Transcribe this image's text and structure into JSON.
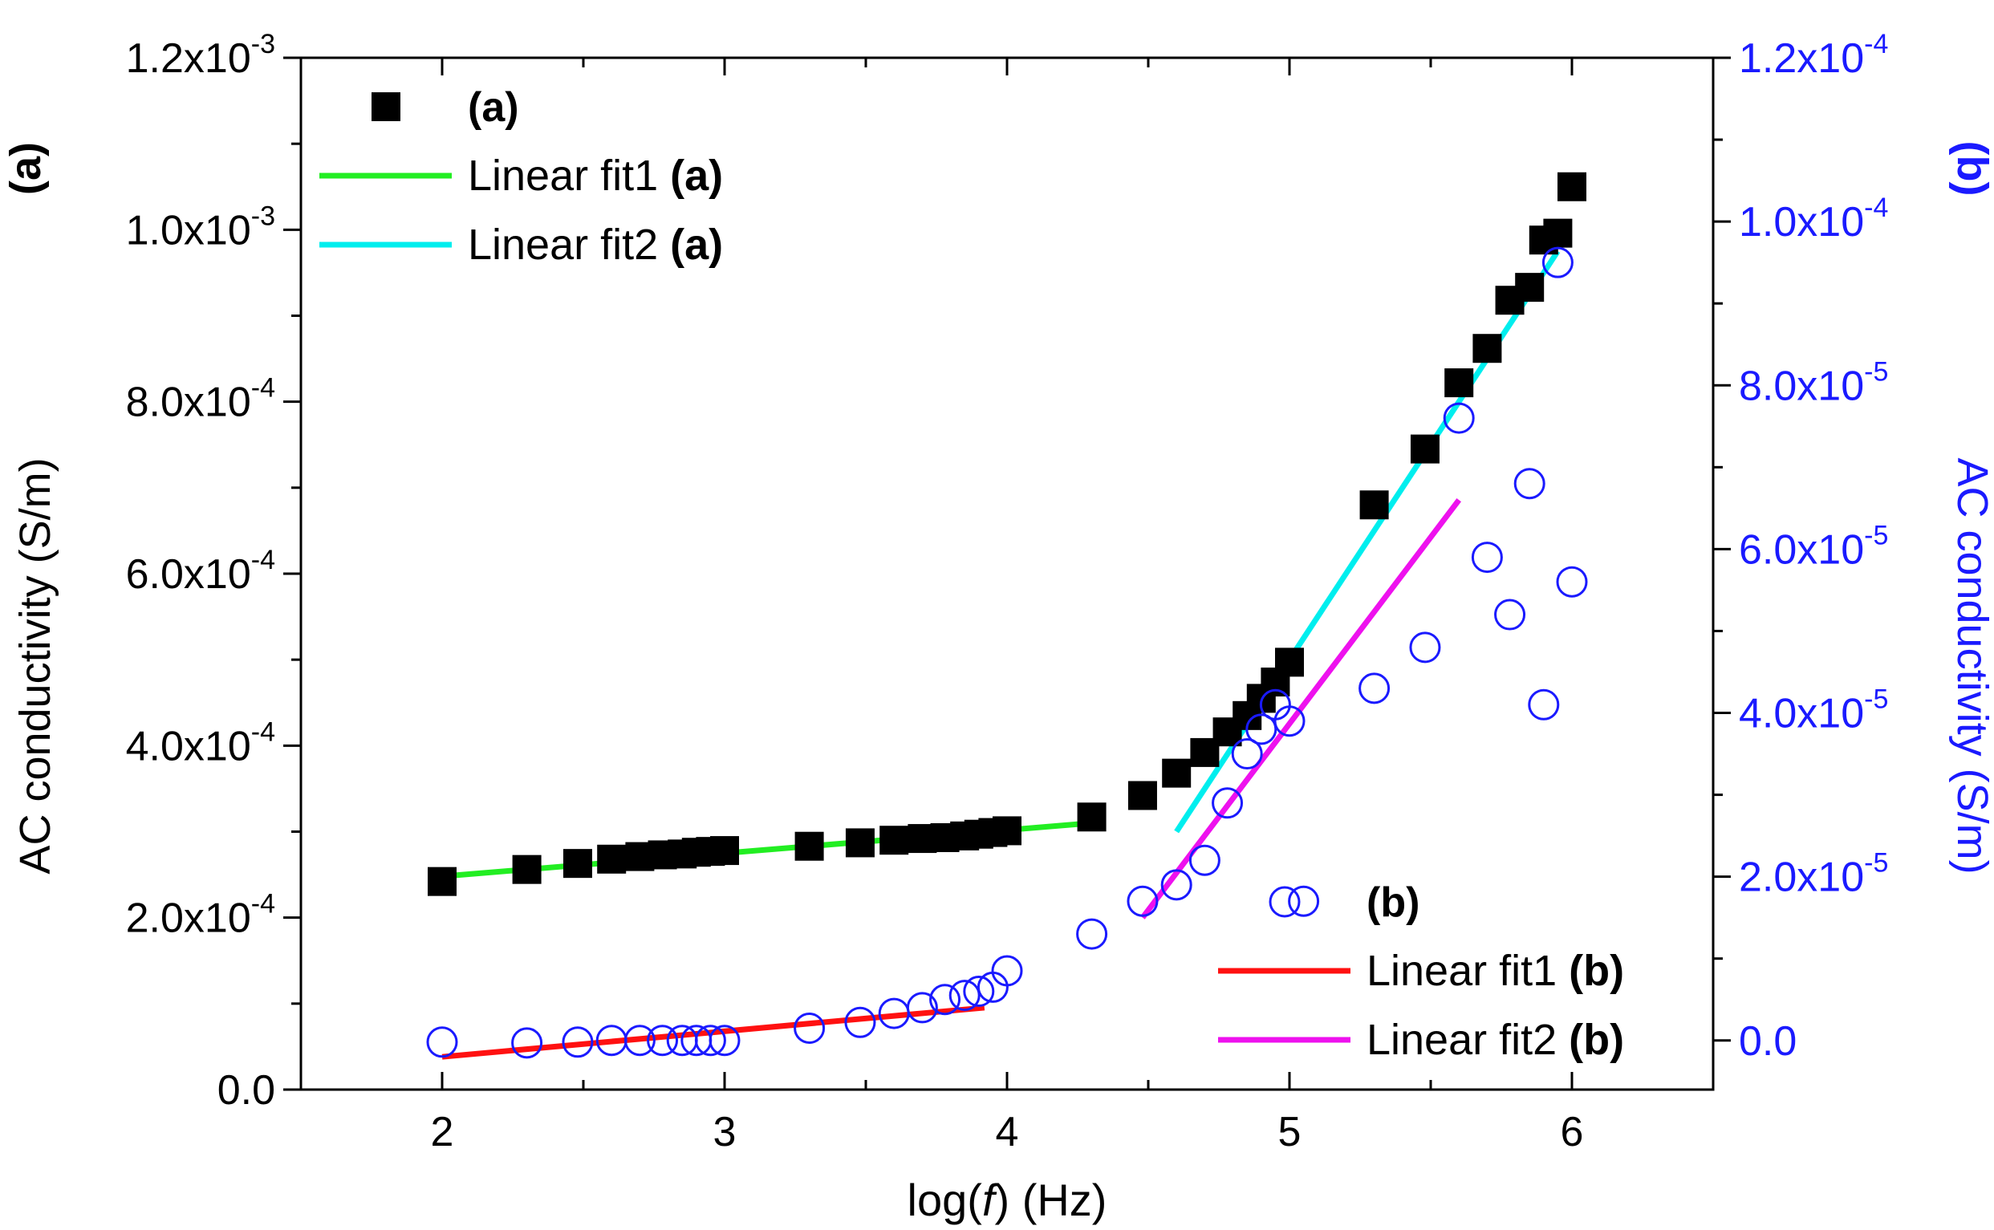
{
  "chart_data": {
    "type": "scatter",
    "x_axis": {
      "label_prefix": "log(",
      "label_var": "f",
      "label_suffix": ") (Hz)",
      "range": [
        1.5,
        6.5
      ],
      "ticks": [
        2,
        3,
        4,
        5,
        6
      ],
      "tick_labels": [
        "2",
        "3",
        "4",
        "5",
        "6"
      ],
      "minor_step": 0.5
    },
    "y_left": {
      "label": "AC conductivity  (S/m)",
      "corner_label": "(a)",
      "range": [
        0,
        0.0012
      ],
      "ticks": [
        {
          "value": 0,
          "mant": "0.0",
          "exp": ""
        },
        {
          "value": 0.0002,
          "mant": "2.0x10",
          "exp": "-4"
        },
        {
          "value": 0.0004,
          "mant": "4.0x10",
          "exp": "-4"
        },
        {
          "value": 0.0006,
          "mant": "6.0x10",
          "exp": "-4"
        },
        {
          "value": 0.0008,
          "mant": "8.0x10",
          "exp": "-4"
        },
        {
          "value": 0.001,
          "mant": "1.0x10",
          "exp": "-3"
        },
        {
          "value": 0.0012,
          "mant": "1.2x10",
          "exp": "-3"
        }
      ],
      "minor_step": 0.0001
    },
    "y_right": {
      "label": "AC conductivity (S/m)",
      "corner_label": "(b)",
      "range": [
        -6e-06,
        0.00012
      ],
      "ticks": [
        {
          "value": 0,
          "mant": "0.0",
          "exp": ""
        },
        {
          "value": 2e-05,
          "mant": "2.0x10",
          "exp": "-5"
        },
        {
          "value": 4e-05,
          "mant": "4.0x10",
          "exp": "-5"
        },
        {
          "value": 6e-05,
          "mant": "6.0x10",
          "exp": "-5"
        },
        {
          "value": 8e-05,
          "mant": "8.0x10",
          "exp": "-5"
        },
        {
          "value": 0.0001,
          "mant": "1.0x10",
          "exp": "-4"
        },
        {
          "value": 0.00012,
          "mant": "1.2x10",
          "exp": "-4"
        }
      ],
      "minor_step": 1e-05,
      "color": "#1a1aff"
    },
    "series": [
      {
        "name": "(a)",
        "axis": "left",
        "marker": "filled-square",
        "color": "#000000",
        "x": [
          2.0,
          2.3,
          2.48,
          2.6,
          2.7,
          2.78,
          2.85,
          2.9,
          2.95,
          3.0,
          3.3,
          3.48,
          3.6,
          3.7,
          3.78,
          3.85,
          3.9,
          3.95,
          4.0,
          4.3,
          4.48,
          4.6,
          4.7,
          4.78,
          4.85,
          4.9,
          4.95,
          5.0,
          5.3,
          5.48,
          5.6,
          5.7,
          5.78,
          5.85,
          5.9,
          5.95,
          6.0
        ],
        "y": [
          0.000242,
          0.000256,
          0.000263,
          0.000268,
          0.000271,
          0.000273,
          0.000274,
          0.000276,
          0.000277,
          0.000278,
          0.000283,
          0.000287,
          0.00029,
          0.000292,
          0.000293,
          0.000295,
          0.000297,
          0.000299,
          0.000301,
          0.000317,
          0.000342,
          0.000368,
          0.000392,
          0.000416,
          0.000435,
          0.000455,
          0.000474,
          0.000497,
          0.00068,
          0.000745,
          0.000822,
          0.000862,
          0.000918,
          0.000933,
          0.000988,
          0.000996,
          0.00105
        ]
      },
      {
        "name": "(b)",
        "axis": "right",
        "marker": "open-circle",
        "color": "#1a1aff",
        "x": [
          2.0,
          2.3,
          2.48,
          2.6,
          2.7,
          2.78,
          2.85,
          2.9,
          2.95,
          3.0,
          3.3,
          3.48,
          3.6,
          3.7,
          3.78,
          3.85,
          3.9,
          3.95,
          4.0,
          4.3,
          4.48,
          4.6,
          4.7,
          4.78,
          4.85,
          4.9,
          4.95,
          5.0,
          5.05,
          5.3,
          5.48,
          5.6,
          5.7,
          5.78,
          5.85,
          5.9,
          5.95,
          6.0
        ],
        "y": [
          -2e-07,
          -3e-07,
          -2e-07,
          0.0,
          0.0,
          0.0,
          0.0,
          0.0,
          0.0,
          0.0,
          1.5e-06,
          2.2e-06,
          3.3e-06,
          4e-06,
          5e-06,
          5.5e-06,
          6e-06,
          6.5e-06,
          8.5e-06,
          1.3e-05,
          1.7e-05,
          1.9e-05,
          2.2e-05,
          2.9e-05,
          3.5e-05,
          3.8e-05,
          4.1e-05,
          3.9e-05,
          1.7e-05,
          4.3e-05,
          4.8e-05,
          7.6e-05,
          5.9e-05,
          5.2e-05,
          6.8e-05,
          4.1e-05,
          9.5e-05,
          5.6e-05
        ]
      }
    ],
    "fit_lines": [
      {
        "name": "Linear fit1",
        "tag": "(a)",
        "axis": "left",
        "color": "#22ee22",
        "x": [
          2.0,
          4.3
        ],
        "y": [
          0.000248,
          0.00031
        ]
      },
      {
        "name": "Linear fit2",
        "tag": "(a)",
        "axis": "left",
        "color": "#00eeee",
        "x": [
          4.6,
          5.95
        ],
        "y": [
          0.0003,
          0.000975
        ]
      },
      {
        "name": "Linear fit1",
        "tag": "(b)",
        "axis": "right",
        "color": "#ff1111",
        "x": [
          2.0,
          3.92
        ],
        "y": [
          -2e-06,
          4e-06
        ]
      },
      {
        "name": "Linear fit2",
        "tag": "(b)",
        "axis": "right",
        "color": "#ee11ee",
        "x": [
          4.48,
          5.6
        ],
        "y": [
          1.5e-05,
          6.6e-05
        ]
      }
    ],
    "legend_a": {
      "position": "top-left",
      "entries": [
        {
          "label": "(a)",
          "kind": "marker",
          "marker": "filled-square",
          "color": "#000000"
        },
        {
          "label": "Linear fit1 ",
          "bold": "(a)",
          "kind": "line",
          "color": "#22ee22"
        },
        {
          "label": "Linear fit2 ",
          "bold": "(a)",
          "kind": "line",
          "color": "#00eeee"
        }
      ]
    },
    "legend_b": {
      "position": "bottom-right",
      "entries": [
        {
          "label": "(b)",
          "kind": "marker",
          "marker": "open-circle",
          "color": "#1a1aff"
        },
        {
          "label": "Linear fit1 ",
          "bold": "(b)",
          "kind": "line",
          "color": "#ff1111"
        },
        {
          "label": "Linear fit2 ",
          "bold": "(b)",
          "kind": "line",
          "color": "#ee11ee"
        }
      ]
    }
  }
}
